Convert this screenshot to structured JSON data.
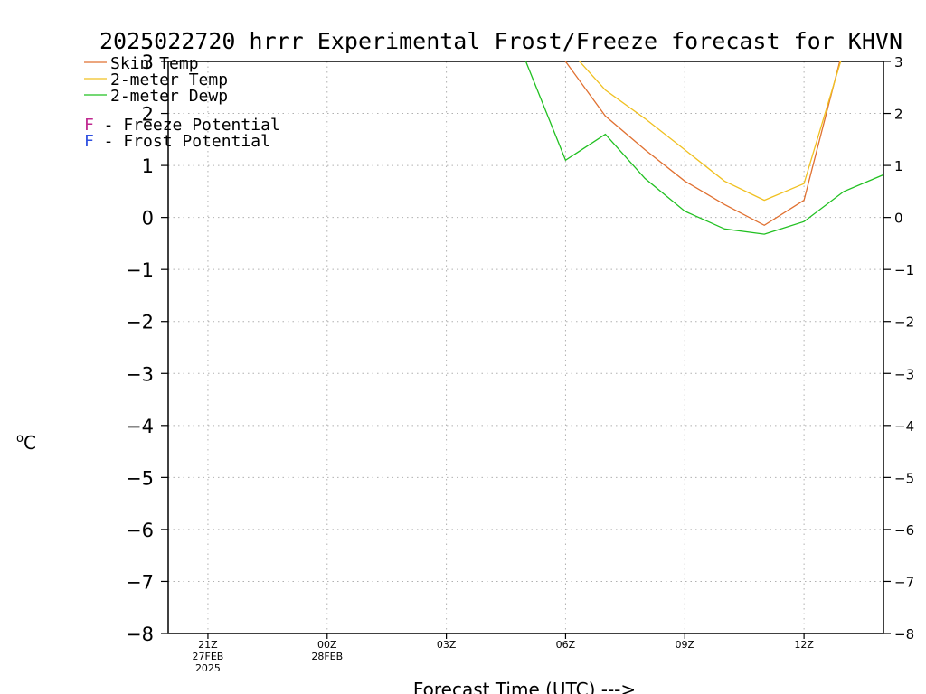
{
  "chart_data": {
    "type": "line",
    "title": "2025022720 hrrr Experimental Frost/Freeze forecast for KHVN",
    "xlabel": "Forecast Time (UTC) --->",
    "ylabel": "°C",
    "ylabel_main": "o",
    "ylabel_unit": "C",
    "xlim_hours": [
      -1,
      17
    ],
    "ylim": [
      -8,
      3
    ],
    "grid": true,
    "yticks": [
      "3",
      "2",
      "1",
      "0",
      "−1",
      "−2",
      "−3",
      "−4",
      "−5",
      "−6",
      "−7",
      "−8"
    ],
    "yticks_values": [
      3,
      2,
      1,
      0,
      -1,
      -2,
      -3,
      -4,
      -5,
      -6,
      -7,
      -8
    ],
    "xticks": [
      {
        "hour": 0,
        "lines": [
          "21Z",
          "27FEB",
          "2025"
        ]
      },
      {
        "hour": 3,
        "lines": [
          "00Z",
          "28FEB"
        ]
      },
      {
        "hour": 6,
        "lines": [
          "03Z"
        ]
      },
      {
        "hour": 9,
        "lines": [
          "06Z"
        ]
      },
      {
        "hour": 12,
        "lines": [
          "09Z"
        ]
      },
      {
        "hour": 15,
        "lines": [
          "12Z"
        ]
      }
    ],
    "series": [
      {
        "name": "Skin Temp",
        "color": "#e07030",
        "x_hours": [
          8,
          9,
          10,
          11,
          12,
          13,
          14,
          15,
          16
        ],
        "values": [
          4.5,
          3.0,
          1.95,
          1.3,
          0.7,
          0.25,
          -0.15,
          0.33,
          3.3
        ]
      },
      {
        "name": "2-meter Temp",
        "color": "#f0c020",
        "x_hours": [
          9,
          10,
          11,
          12,
          13,
          14,
          15,
          16
        ],
        "values": [
          3.3,
          2.45,
          1.9,
          1.3,
          0.7,
          0.33,
          0.65,
          3.2
        ]
      },
      {
        "name": "2-meter Dewp",
        "color": "#20c020",
        "x_hours": [
          8,
          9,
          10,
          11,
          12,
          13,
          14,
          15,
          16,
          17
        ],
        "values": [
          3.0,
          1.1,
          1.6,
          0.75,
          0.12,
          -0.22,
          -0.32,
          -0.08,
          0.5,
          0.82
        ]
      }
    ],
    "legend": {
      "series_labels": [
        "Skin Temp",
        "2-meter Temp",
        "2-meter Dewp"
      ],
      "potentials": [
        {
          "letter": "F",
          "text": " - Freeze Potential",
          "color": "#c02890"
        },
        {
          "letter": "F",
          "text": " - Frost Potential",
          "color": "#3050e0"
        }
      ]
    }
  }
}
